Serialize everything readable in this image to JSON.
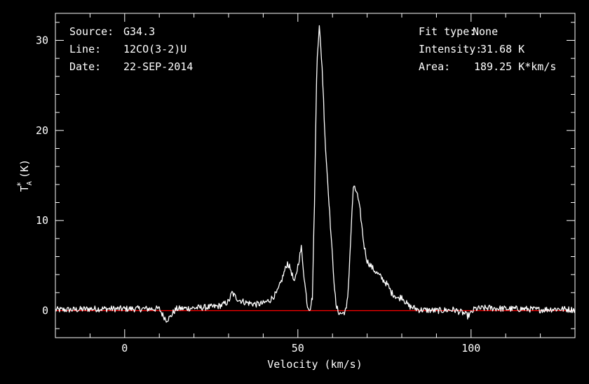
{
  "info": {
    "source_label": "Source:",
    "source_value": "G34.3",
    "line_label": "Line:",
    "line_value": "12CO(3-2)U",
    "date_label": "Date:",
    "date_value": "22-SEP-2014",
    "fit_label": "Fit type:",
    "fit_value": "None",
    "intensity_label": "Intensity:",
    "intensity_value": "31.68 K",
    "area_label": "Area:",
    "area_value": "189.25 K*km/s"
  },
  "chart_data": {
    "type": "line",
    "xlabel": "Velocity (km/s)",
    "ylabel_base": "T",
    "ylabel_sub": "A",
    "ylabel_sup": "*",
    "ylabel_unit": "(K)",
    "xlim": [
      -20,
      130
    ],
    "ylim": [
      -3,
      33
    ],
    "xticks": [
      0,
      50,
      100
    ],
    "yticks": [
      0,
      10,
      20,
      30
    ],
    "grid": false,
    "baseline_value": 0,
    "colors": {
      "spectrum": "#ffffff",
      "baseline": "#ff0000",
      "axes": "#ffffff",
      "background": "#000000"
    },
    "series": [
      {
        "x": [
          -20,
          -15,
          -10,
          -5,
          0,
          5,
          10,
          11,
          12,
          13,
          14,
          15,
          20,
          25,
          27,
          28,
          30,
          31,
          32,
          33,
          35,
          38,
          40,
          42,
          44,
          45,
          46,
          47,
          48,
          49,
          50,
          51,
          52,
          52.8,
          53.5,
          54.2,
          54.8,
          55.5,
          56.2,
          57,
          58,
          59,
          59.8,
          60.5,
          61,
          62,
          63,
          64,
          64.5,
          65,
          65.5,
          66,
          67,
          68,
          69,
          70,
          72,
          74,
          76,
          77,
          78,
          79,
          80,
          81,
          82,
          85,
          90,
          95,
          98,
          99,
          100,
          101,
          105,
          110,
          115,
          120,
          125,
          130
        ],
        "y": [
          0.1,
          0.1,
          0.2,
          0.2,
          0.2,
          0.2,
          0.2,
          -0.5,
          -1.0,
          -0.8,
          -0.2,
          0.2,
          0.3,
          0.4,
          0.5,
          0.6,
          1.0,
          2.0,
          1.5,
          1.2,
          0.9,
          0.7,
          0.8,
          1.2,
          2.0,
          3.0,
          4.2,
          5.3,
          4.5,
          3.0,
          5.0,
          7.0,
          3.0,
          0.5,
          0.2,
          1.5,
          12.0,
          28.0,
          31.5,
          27.0,
          18.0,
          12.0,
          7.0,
          3.0,
          0.5,
          -0.3,
          -0.3,
          0.1,
          2.0,
          6.0,
          10.0,
          13.7,
          13.2,
          11.0,
          7.5,
          5.5,
          4.5,
          3.7,
          2.8,
          2.0,
          1.7,
          1.3,
          1.6,
          1.0,
          0.5,
          0.1,
          0.0,
          0.1,
          -0.3,
          -0.6,
          -0.3,
          0.2,
          0.3,
          0.2,
          0.2,
          0.1,
          0.2,
          0.1
        ]
      }
    ]
  }
}
